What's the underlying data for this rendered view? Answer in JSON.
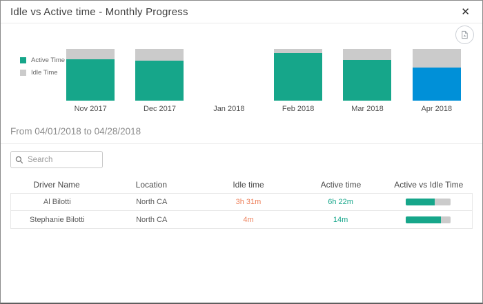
{
  "colors": {
    "active": "#16a68a",
    "idle": "#cbcbcb",
    "highlight": "#0090d8",
    "idle_text": "#ed7d57",
    "active_text": "#16a68a"
  },
  "header": {
    "title": "Idle vs Active time - Monthly Progress",
    "close_glyph": "✕"
  },
  "chart_data": {
    "type": "bar",
    "variant": "stacked-100-percent",
    "categories": [
      "Nov 2017",
      "Dec 2017",
      "Jan 2018",
      "Feb 2018",
      "Mar 2018",
      "Apr 2018"
    ],
    "series": [
      {
        "name": "Active Time",
        "values": [
          80,
          77,
          null,
          92,
          79,
          64
        ]
      },
      {
        "name": "Idle Time",
        "values": [
          20,
          23,
          null,
          8,
          21,
          36
        ]
      }
    ],
    "highlighted_category": "Apr 2018",
    "legend_position": "left",
    "grid": false,
    "ylim": [
      0,
      100
    ]
  },
  "legend": {
    "items": [
      {
        "label": "Active Time",
        "color_key": "active"
      },
      {
        "label": "Idle Time",
        "color_key": "idle"
      }
    ]
  },
  "range_text": "From 04/01/2018 to 04/28/2018",
  "search": {
    "placeholder": "Search"
  },
  "table": {
    "columns": [
      "Driver Name",
      "Location",
      "Idle time",
      "Active time",
      "Active vs Idle Time"
    ],
    "rows": [
      {
        "name": "Al Bilotti",
        "location": "North CA",
        "idle": "3h 31m",
        "active": "6h 22m",
        "active_pct": 64
      },
      {
        "name": "Stephanie Bilotti",
        "location": "North CA",
        "idle": "4m",
        "active": "14m",
        "active_pct": 78
      }
    ]
  }
}
